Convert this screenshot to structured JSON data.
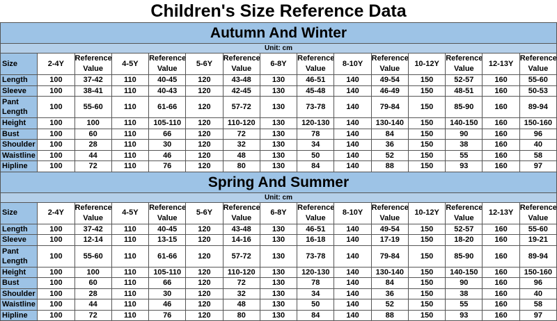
{
  "title": "Children's Size Reference Data",
  "colors": {
    "header_bg": "#9dc3e6",
    "unit_bg": "#b4cfe9"
  },
  "sections": [
    {
      "heading": "Autumn And Winter",
      "unit": "Unit:  cm",
      "columns": [
        "Size",
        "2-4Y",
        "Reference Value",
        "4-5Y",
        "Reference Value",
        "5-6Y",
        "Reference Value",
        "6-8Y",
        "Reference Value",
        "8-10Y",
        "Reference Value",
        "10-12Y",
        "Reference Value",
        "12-13Y",
        "Reference Value"
      ],
      "rows": [
        [
          "Length",
          "100",
          "37-42",
          "110",
          "40-45",
          "120",
          "43-48",
          "130",
          "46-51",
          "140",
          "49-54",
          "150",
          "52-57",
          "160",
          "55-60"
        ],
        [
          "Sleeve",
          "100",
          "38-41",
          "110",
          "40-43",
          "120",
          "42-45",
          "130",
          "45-48",
          "140",
          "46-49",
          "150",
          "48-51",
          "160",
          "50-53"
        ],
        [
          "Pant Length",
          "100",
          "55-60",
          "110",
          "61-66",
          "120",
          "57-72",
          "130",
          "73-78",
          "140",
          "79-84",
          "150",
          "85-90",
          "160",
          "89-94"
        ],
        [
          "Height",
          "100",
          "100",
          "110",
          "105-110",
          "120",
          "110-120",
          "130",
          "120-130",
          "140",
          "130-140",
          "150",
          "140-150",
          "160",
          "150-160"
        ],
        [
          "Bust",
          "100",
          "60",
          "110",
          "66",
          "120",
          "72",
          "130",
          "78",
          "140",
          "84",
          "150",
          "90",
          "160",
          "96"
        ],
        [
          "Shoulder",
          "100",
          "28",
          "110",
          "30",
          "120",
          "32",
          "130",
          "34",
          "140",
          "36",
          "150",
          "38",
          "160",
          "40"
        ],
        [
          "Waistline",
          "100",
          "44",
          "110",
          "46",
          "120",
          "48",
          "130",
          "50",
          "140",
          "52",
          "150",
          "55",
          "160",
          "58"
        ],
        [
          "Hipline",
          "100",
          "72",
          "110",
          "76",
          "120",
          "80",
          "130",
          "84",
          "140",
          "88",
          "150",
          "93",
          "160",
          "97"
        ]
      ]
    },
    {
      "heading": "Spring And Summer",
      "unit": "Unit:  cm",
      "columns": [
        "Size",
        "2-4Y",
        "Reference Value",
        "4-5Y",
        "Reference Value",
        "5-6Y",
        "Reference Value",
        "6-8Y",
        "Reference Value",
        "8-10Y",
        "Reference Value",
        "10-12Y",
        "Reference Value",
        "12-13Y",
        "Reference Value"
      ],
      "rows": [
        [
          "Length",
          "100",
          "37-42",
          "110",
          "40-45",
          "120",
          "43-48",
          "130",
          "46-51",
          "140",
          "49-54",
          "150",
          "52-57",
          "160",
          "55-60"
        ],
        [
          "Sleeve",
          "100",
          "12-14",
          "110",
          "13-15",
          "120",
          "14-16",
          "130",
          "16-18",
          "140",
          "17-19",
          "150",
          "18-20",
          "160",
          "19-21"
        ],
        [
          "Pant Length",
          "100",
          "55-60",
          "110",
          "61-66",
          "120",
          "57-72",
          "130",
          "73-78",
          "140",
          "79-84",
          "150",
          "85-90",
          "160",
          "89-94"
        ],
        [
          "Height",
          "100",
          "100",
          "110",
          "105-110",
          "120",
          "110-120",
          "130",
          "120-130",
          "140",
          "130-140",
          "150",
          "140-150",
          "160",
          "150-160"
        ],
        [
          "Bust",
          "100",
          "60",
          "110",
          "66",
          "120",
          "72",
          "130",
          "78",
          "140",
          "84",
          "150",
          "90",
          "160",
          "96"
        ],
        [
          "Shoulder",
          "100",
          "28",
          "110",
          "30",
          "120",
          "32",
          "130",
          "34",
          "140",
          "36",
          "150",
          "38",
          "160",
          "40"
        ],
        [
          "Waistline",
          "100",
          "44",
          "110",
          "46",
          "120",
          "48",
          "130",
          "50",
          "140",
          "52",
          "150",
          "55",
          "160",
          "58"
        ],
        [
          "Hipline",
          "100",
          "72",
          "110",
          "76",
          "120",
          "80",
          "130",
          "84",
          "140",
          "88",
          "150",
          "93",
          "160",
          "97"
        ]
      ]
    }
  ]
}
